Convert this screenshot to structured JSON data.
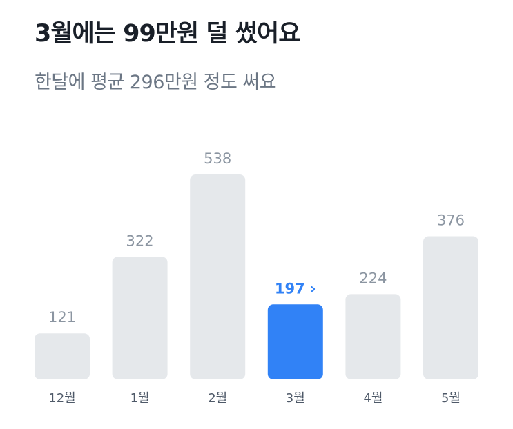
{
  "header": {
    "title": "3월에는 99만원 덜 썼어요",
    "subtitle": "한달에 평균 296만원 정도 써요"
  },
  "colors": {
    "bar": "#e5e8eb",
    "bar_selected": "#3182f6",
    "value_text": "#8b95a1",
    "value_text_selected": "#3182f6",
    "month_text": "#4e5968"
  },
  "chart_data": {
    "type": "bar",
    "categories": [
      "12월",
      "1월",
      "2월",
      "3월",
      "4월",
      "5월"
    ],
    "values": [
      121,
      322,
      538,
      197,
      224,
      376
    ],
    "selected_index": 3,
    "selected_suffix": "›",
    "grid": false,
    "legend": "none"
  }
}
